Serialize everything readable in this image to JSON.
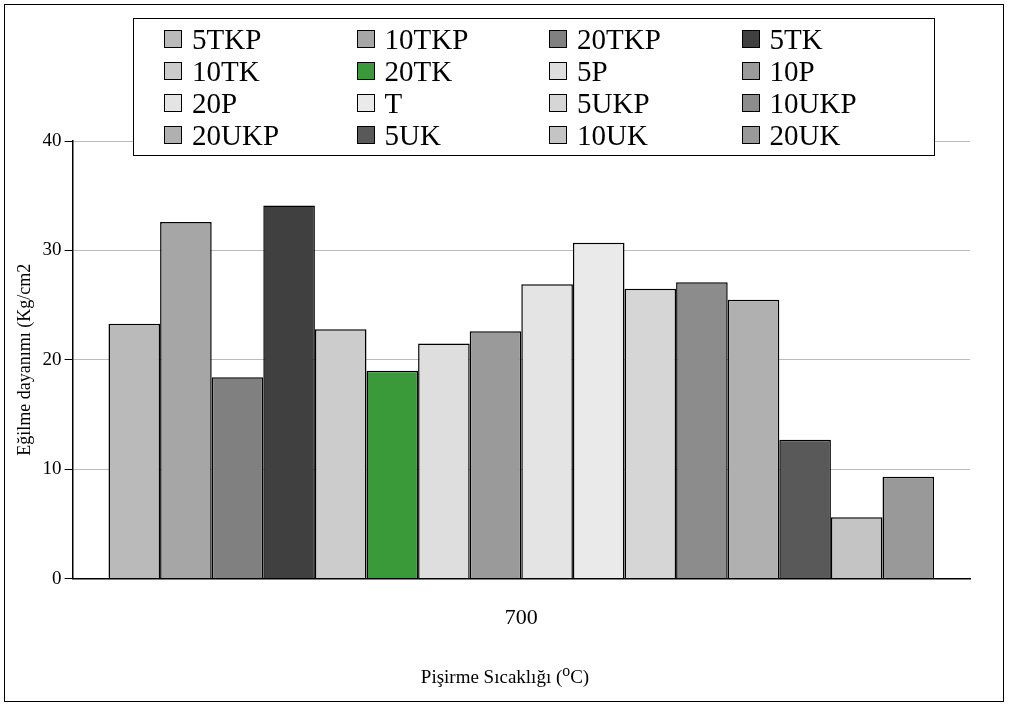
{
  "chart_data": {
    "type": "bar",
    "xlabel": "Pişirme Sıcaklığı ($^{o}$C)",
    "ylabel": "Eğilme dayanımı (Kg/cm2",
    "categories": [
      "700"
    ],
    "ylim": [
      0,
      40
    ],
    "yticks": [
      0,
      10,
      20,
      30,
      40
    ],
    "grid": "y",
    "legend": "top",
    "series": [
      {
        "name": "5TKP",
        "color": "#bababa",
        "values": [
          23.3
        ]
      },
      {
        "name": "10TKP",
        "color": "#a6a6a6",
        "values": [
          32.6
        ]
      },
      {
        "name": "20TKP",
        "color": "#808080",
        "values": [
          18.4
        ]
      },
      {
        "name": "5TK",
        "color": "#404040",
        "values": [
          34.1
        ]
      },
      {
        "name": "10TK",
        "color": "#cccccc",
        "values": [
          22.8
        ]
      },
      {
        "name": "20TK",
        "color": "#3a9a3a",
        "values": [
          19.0
        ]
      },
      {
        "name": "5P",
        "color": "#dedede",
        "values": [
          21.5
        ]
      },
      {
        "name": "10P",
        "color": "#9a9a9a",
        "values": [
          22.6
        ]
      },
      {
        "name": "20P",
        "color": "#e4e4e4",
        "values": [
          26.9
        ]
      },
      {
        "name": "T",
        "color": "#eaeaea",
        "values": [
          30.7
        ]
      },
      {
        "name": "5UKP",
        "color": "#d6d6d6",
        "values": [
          26.5
        ]
      },
      {
        "name": "10UKP",
        "color": "#8c8c8c",
        "values": [
          27.1
        ]
      },
      {
        "name": "20UKP",
        "color": "#b0b0b0",
        "values": [
          25.5
        ]
      },
      {
        "name": "5UK",
        "color": "#595959",
        "values": [
          12.7
        ]
      },
      {
        "name": "10UK",
        "color": "#c4c4c4",
        "values": [
          5.6
        ]
      },
      {
        "name": "20UK",
        "color": "#999999",
        "values": [
          9.3
        ]
      }
    ]
  }
}
